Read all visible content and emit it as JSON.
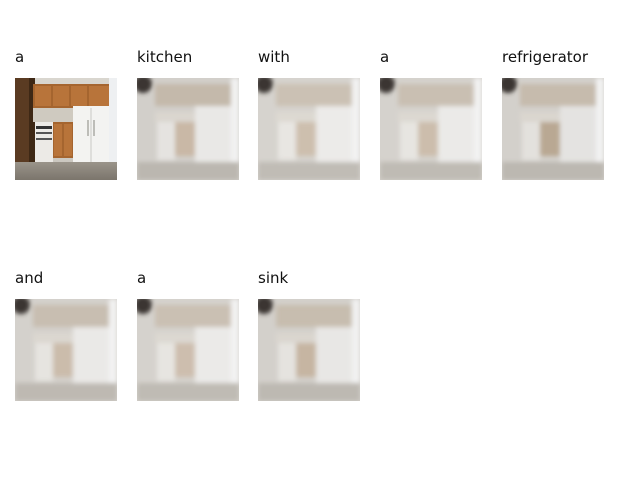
{
  "caption_words": [
    "a",
    "kitchen",
    "with",
    "a",
    "refrigerator",
    "and",
    "a",
    "sink"
  ],
  "first_image_kind": "original",
  "other_images_kind": "attention"
}
